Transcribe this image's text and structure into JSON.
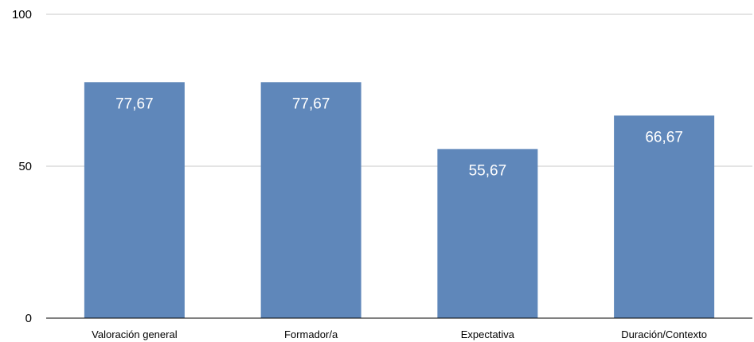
{
  "chart_data": {
    "type": "bar",
    "categories": [
      "Valoración general",
      "Formador/a",
      "Expectativa",
      "Duración/Contexto"
    ],
    "values": [
      77.67,
      77.67,
      55.67,
      66.67
    ],
    "data_labels": [
      "77,67",
      "77,67",
      "55,67",
      "66,67"
    ],
    "ylim": [
      0,
      100
    ],
    "yticks": [
      0,
      50,
      100
    ],
    "ytick_labels": [
      "0",
      "50",
      "100"
    ],
    "grid": true,
    "legend": "none",
    "colors": {
      "bar": "#5f87ba",
      "grid": "#c8c8c8",
      "axis": "#000000",
      "data_label": "#ffffff"
    }
  }
}
